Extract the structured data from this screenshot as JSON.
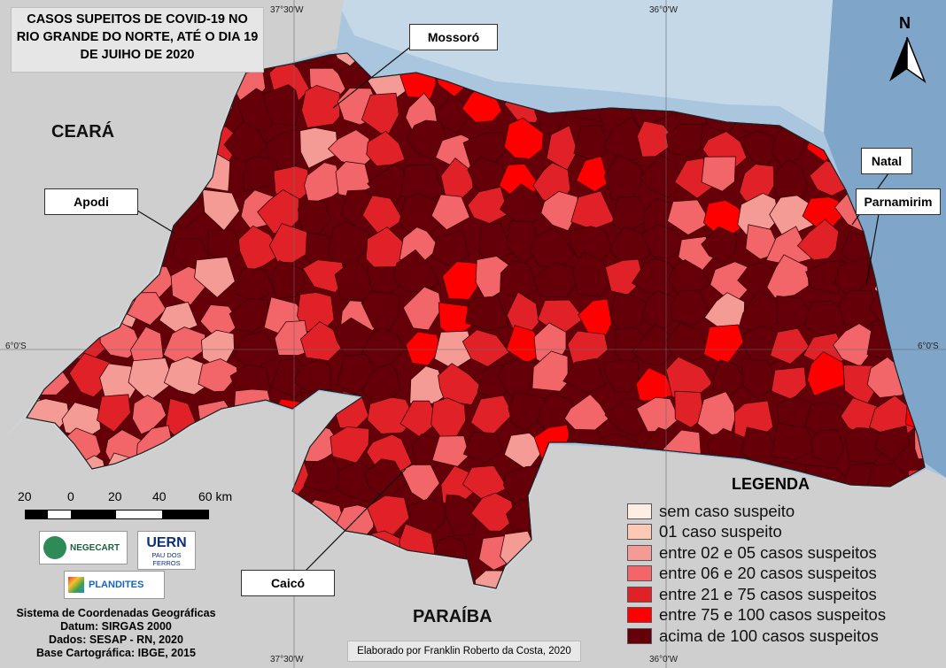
{
  "title": [
    "CASOS SUPEITOS DE COVID-19 NO",
    "RIO GRANDE DO NORTE, ATÉ O DIA 19",
    "DE JUIHO DE 2020"
  ],
  "states": {
    "ceara": "CEARÁ",
    "paraiba": "PARAÍBA"
  },
  "cities": {
    "mossoro": "Mossoró",
    "apodi": "Apodi",
    "natal": "Natal",
    "parnamirim": "Parnamirim",
    "caico": "Caicó"
  },
  "coords": {
    "lon_a": "37°30'W",
    "lon_b": "36°0'W",
    "lat": "6°0'S"
  },
  "north_label": "N",
  "legend": {
    "title": "LEGENDA",
    "items": [
      {
        "label": "sem caso suspeito",
        "color": "#fdeee4"
      },
      {
        "label": "01 caso suspeito",
        "color": "#fcc9b4"
      },
      {
        "label": "entre 02 e 05 casos suspeitos",
        "color": "#f59b95"
      },
      {
        "label": "entre 06 e 20 casos suspeitos",
        "color": "#f2666a"
      },
      {
        "label": "entre 21 e 75 casos suspeitos",
        "color": "#e02228"
      },
      {
        "label": "entre 75 e 100 casos suspeitos",
        "color": "#ff0000"
      },
      {
        "label": "acima de 100 casos suspeitos",
        "color": "#660008"
      }
    ]
  },
  "scale": {
    "labels": [
      "20",
      "0",
      "20",
      "40",
      "60 km"
    ]
  },
  "logos": {
    "negecart": "NEGECART",
    "uern": "UERN",
    "uern_sub": "PAU DOS FERROS",
    "plandites": "PLANDITES"
  },
  "info": [
    "Sistema de Coordenadas Geográficas",
    "Datum: SIRGAS 2000",
    "Dados: SESAP - RN, 2020",
    "Base Cartográfica: IBGE, 2015"
  ],
  "credit": "Elaborado por Franklin Roberto da Costa, 2020"
}
